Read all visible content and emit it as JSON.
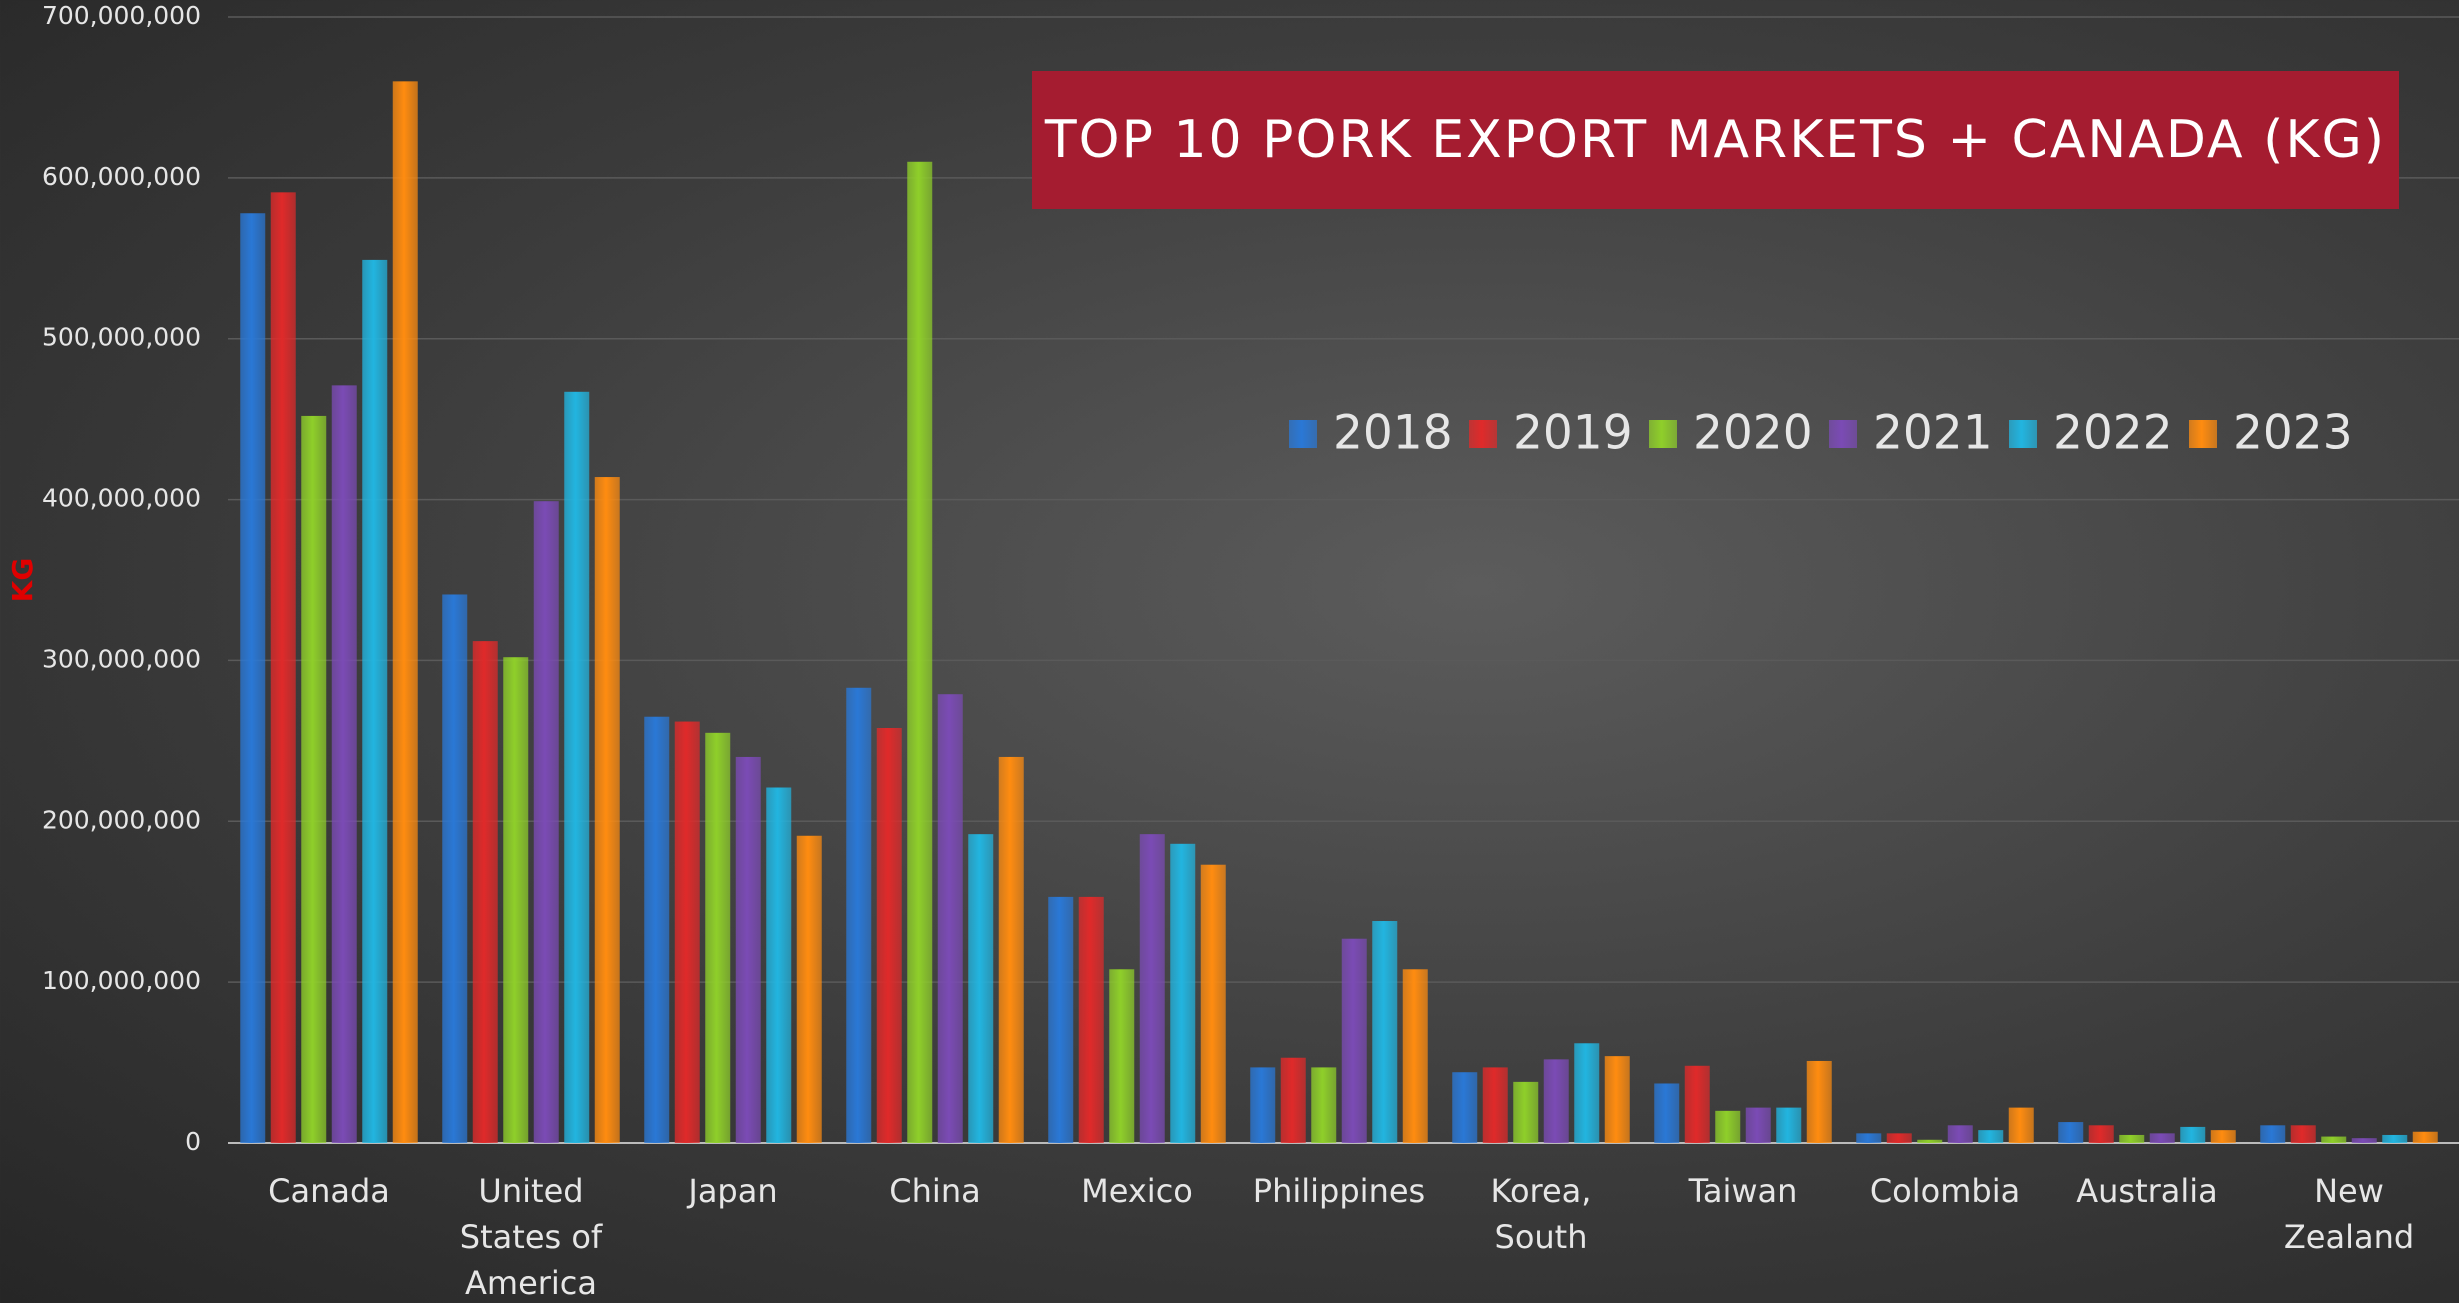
{
  "chart_data": {
    "type": "bar",
    "title": "TOP 10 PORK EXPORT MARKETS + CANADA (KG)",
    "y_label": "KG",
    "categories": [
      "Canada",
      "United States of America",
      "Japan",
      "China",
      "Mexico",
      "Philippines",
      "Korea, South",
      "Taiwan",
      "Colombia",
      "Australia",
      "New Zealand"
    ],
    "series": [
      {
        "name": "2018",
        "color": "#2a78d6",
        "values": [
          578000000,
          341000000,
          265000000,
          283000000,
          153000000,
          47000000,
          44000000,
          37000000,
          6000000,
          13000000,
          11000000
        ]
      },
      {
        "name": "2019",
        "color": "#e02a2a",
        "values": [
          591000000,
          312000000,
          262000000,
          258000000,
          153000000,
          53000000,
          47000000,
          48000000,
          6000000,
          11000000,
          11000000
        ]
      },
      {
        "name": "2020",
        "color": "#8fcf2a",
        "values": [
          452000000,
          302000000,
          255000000,
          610000000,
          108000000,
          47000000,
          38000000,
          20000000,
          2000000,
          5000000,
          4000000
        ]
      },
      {
        "name": "2021",
        "color": "#7b4bb5",
        "values": [
          471000000,
          399000000,
          240000000,
          279000000,
          192000000,
          127000000,
          52000000,
          22000000,
          11000000,
          6000000,
          3000000
        ]
      },
      {
        "name": "2022",
        "color": "#22b5e0",
        "values": [
          549000000,
          467000000,
          221000000,
          192000000,
          186000000,
          138000000,
          62000000,
          22000000,
          8000000,
          10000000,
          5000000
        ]
      },
      {
        "name": "2023",
        "color": "#ff8c10",
        "values": [
          660000000,
          414000000,
          191000000,
          240000000,
          173000000,
          108000000,
          54000000,
          51000000,
          22000000,
          8000000,
          7000000
        ]
      }
    ],
    "ylim": [
      0,
      700000000
    ],
    "yticks": [
      {
        "value": 0,
        "label": "0"
      },
      {
        "value": 100000000,
        "label": "100,000,000"
      },
      {
        "value": 200000000,
        "label": "200,000,000"
      },
      {
        "value": 300000000,
        "label": "300,000,000"
      },
      {
        "value": 400000000,
        "label": "400,000,000"
      },
      {
        "value": 500000000,
        "label": "500,000,000"
      },
      {
        "value": 600000000,
        "label": "600,000,000"
      },
      {
        "value": 700000000,
        "label": "700,000,000"
      }
    ],
    "grid": true
  }
}
